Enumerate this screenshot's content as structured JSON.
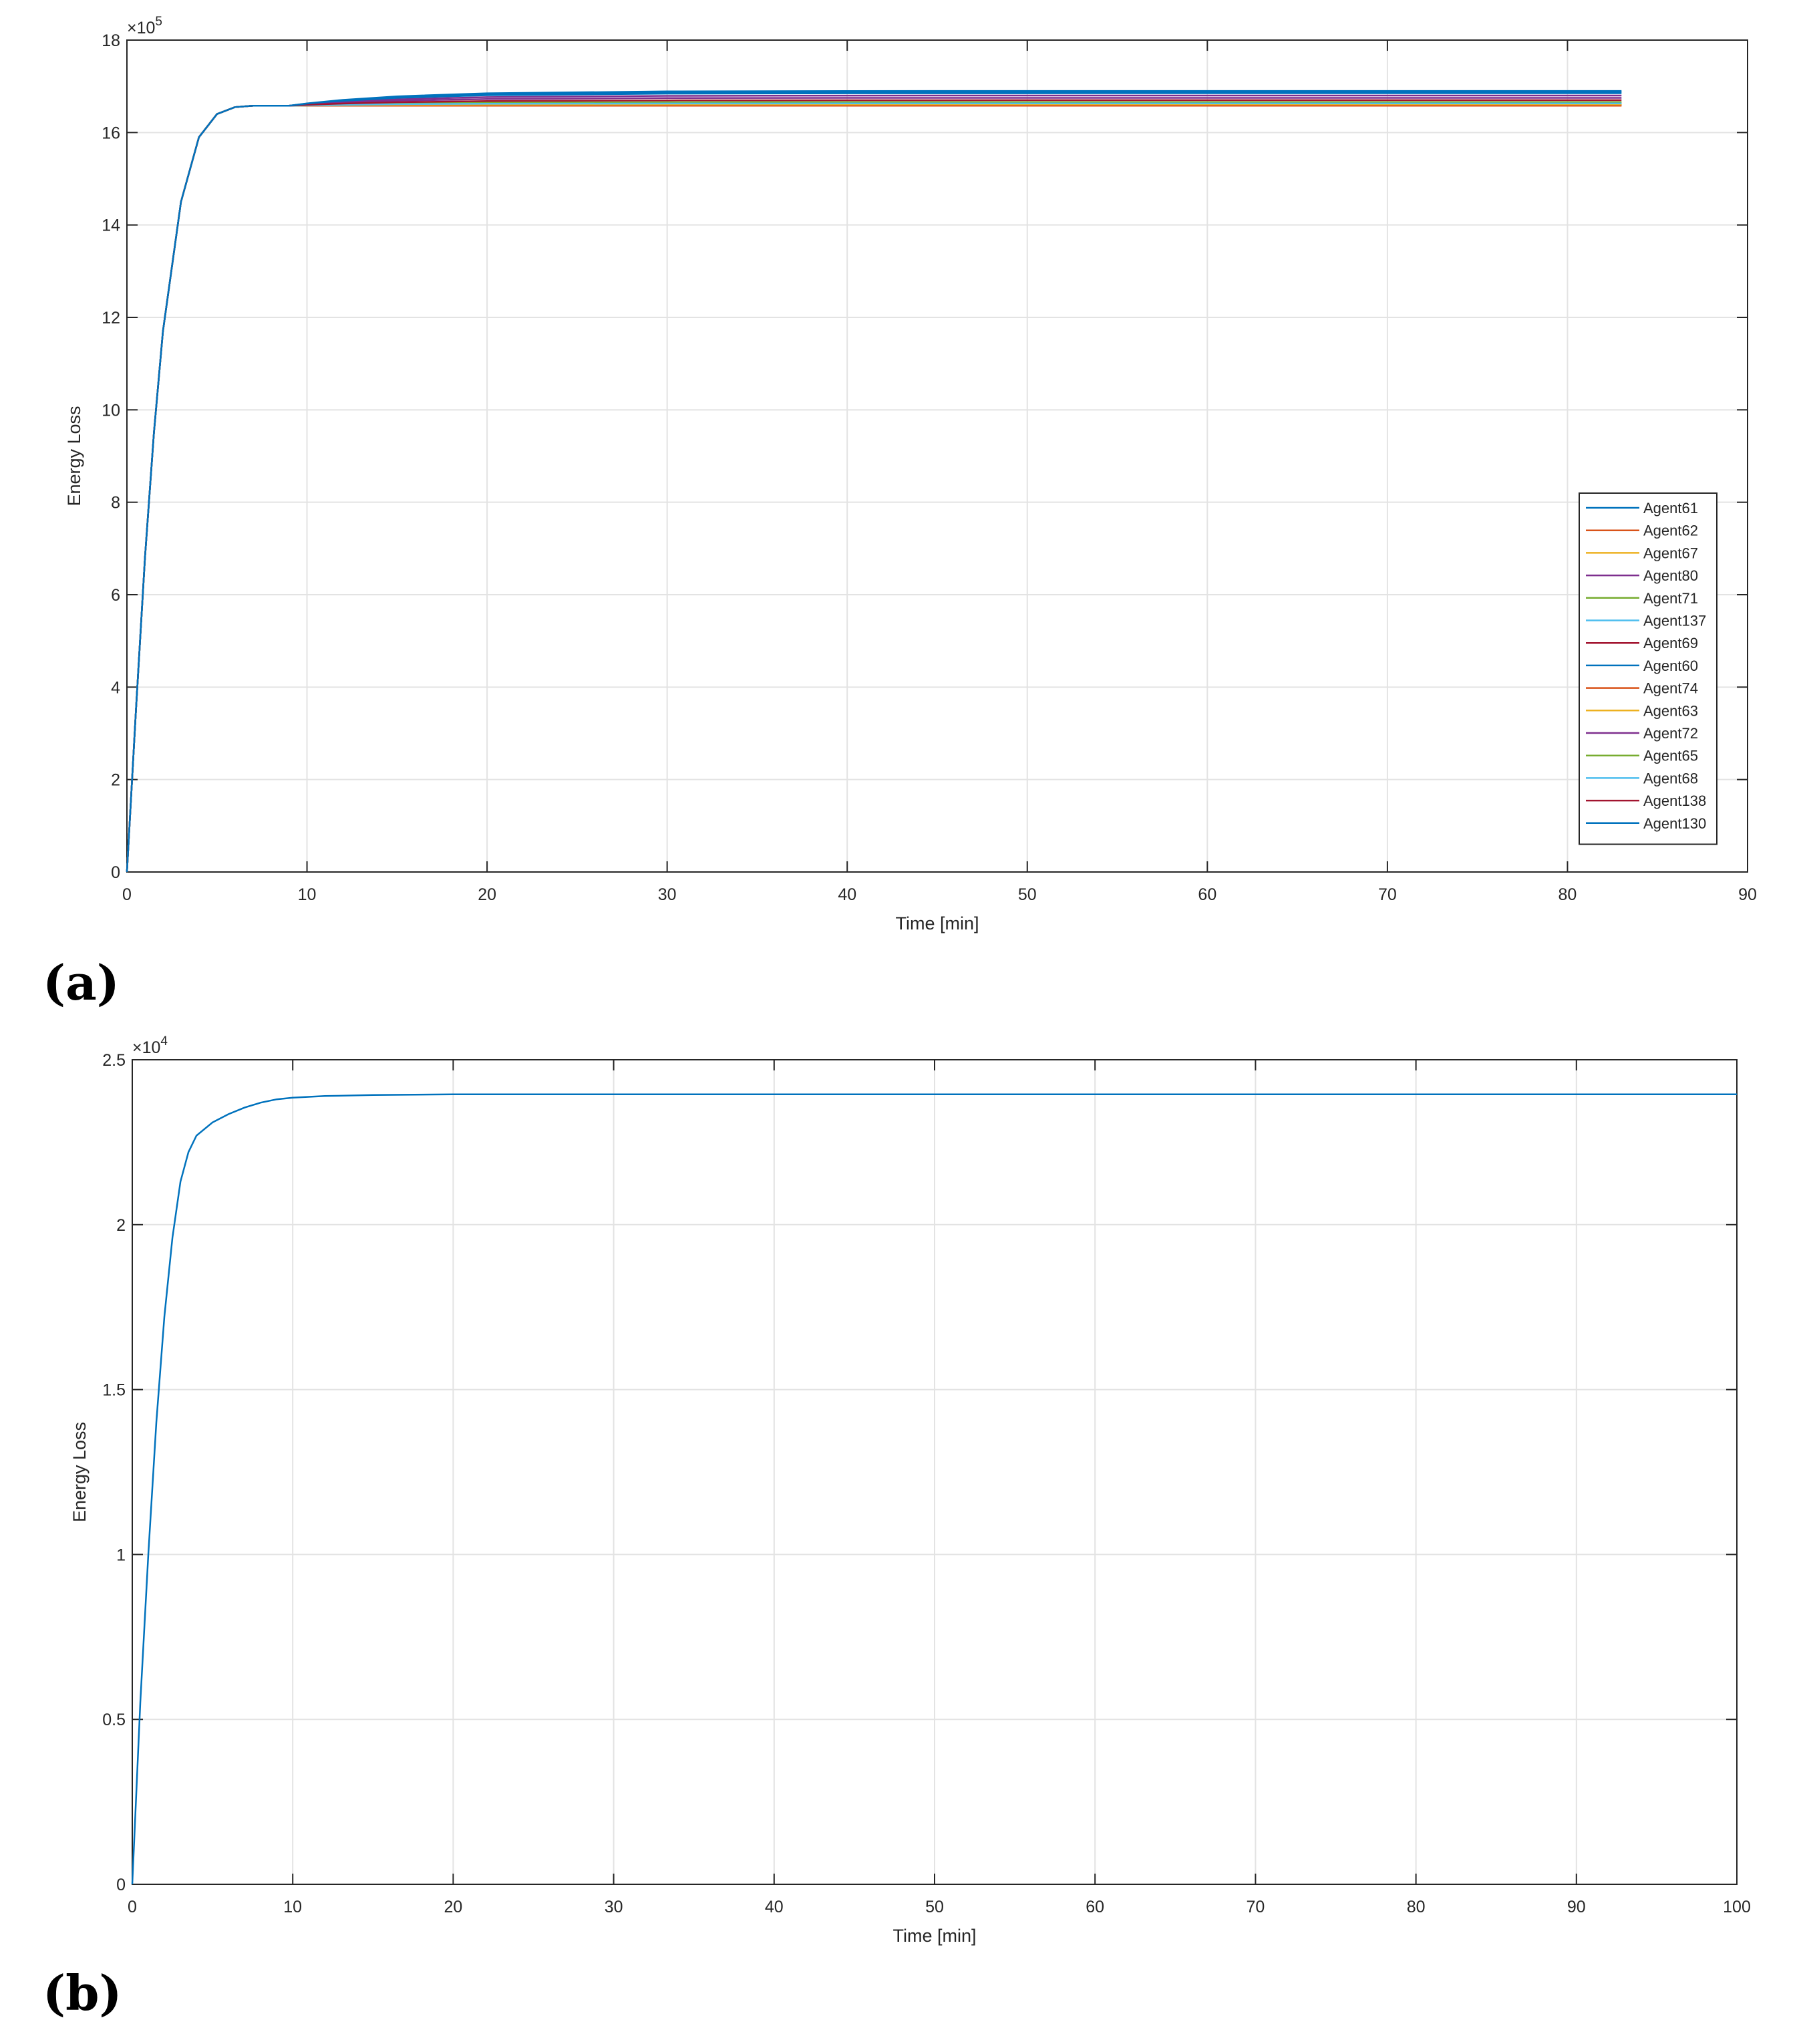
{
  "chart_data": [
    {
      "type": "line",
      "panel_label": "(a)",
      "xlabel": "Time [min]",
      "ylabel": "Energy Loss",
      "y_exponent": "×10^5",
      "y_exponent_base": "×10",
      "y_exponent_power": "5",
      "xlim": [
        0,
        90
      ],
      "ylim": [
        0,
        18
      ],
      "xticks": [
        0,
        10,
        20,
        30,
        40,
        50,
        60,
        70,
        80,
        90
      ],
      "yticks": [
        0,
        2,
        4,
        6,
        8,
        10,
        12,
        14,
        16,
        18
      ],
      "grid": true,
      "legend_position": "right",
      "x": [
        0,
        0.5,
        1,
        1.5,
        2,
        3,
        4,
        5,
        6,
        7,
        8,
        9,
        10,
        12,
        15,
        20,
        30,
        40,
        50,
        60,
        70,
        83
      ],
      "rise": [
        0,
        3.5,
        6.8,
        9.5,
        11.7,
        14.5,
        15.9,
        16.4,
        16.55,
        16.58,
        16.58,
        16.58
      ],
      "series": [
        {
          "name": "Agent61",
          "color": "#0072BD",
          "final": 16.9
        },
        {
          "name": "Agent62",
          "color": "#D95319",
          "final": 16.58
        },
        {
          "name": "Agent67",
          "color": "#EDB120",
          "final": 16.6
        },
        {
          "name": "Agent80",
          "color": "#7E2F8E",
          "final": 16.8
        },
        {
          "name": "Agent71",
          "color": "#77AC30",
          "final": 16.65
        },
        {
          "name": "Agent137",
          "color": "#4DBEEE",
          "final": 16.62
        },
        {
          "name": "Agent69",
          "color": "#A2142F",
          "final": 16.6
        },
        {
          "name": "Agent60",
          "color": "#0072BD",
          "final": 16.85
        },
        {
          "name": "Agent74",
          "color": "#D95319",
          "final": 16.59
        },
        {
          "name": "Agent63",
          "color": "#EDB120",
          "final": 16.61
        },
        {
          "name": "Agent72",
          "color": "#7E2F8E",
          "final": 16.75
        },
        {
          "name": "Agent65",
          "color": "#77AC30",
          "final": 16.66
        },
        {
          "name": "Agent68",
          "color": "#4DBEEE",
          "final": 16.63
        },
        {
          "name": "Agent138",
          "color": "#A2142F",
          "final": 16.7
        },
        {
          "name": "Agent130",
          "color": "#0072BD",
          "final": 16.88
        }
      ]
    },
    {
      "type": "line",
      "panel_label": "(b)",
      "xlabel": "Time [min]",
      "ylabel": "Energy Loss",
      "y_exponent": "×10^4",
      "y_exponent_base": "×10",
      "y_exponent_power": "4",
      "xlim": [
        0,
        100
      ],
      "ylim": [
        0,
        2.5
      ],
      "xticks": [
        0,
        10,
        20,
        30,
        40,
        50,
        60,
        70,
        80,
        90,
        100
      ],
      "yticks": [
        0,
        0.5,
        1,
        1.5,
        2,
        2.5
      ],
      "ytick_labels": [
        "0",
        "0.5",
        "1",
        "1.5",
        "2",
        "2.5"
      ],
      "grid": true,
      "series": [
        {
          "color": "#0072BD",
          "x": [
            0,
            0.5,
            1,
            1.5,
            2,
            2.5,
            3,
            3.5,
            4,
            5,
            6,
            7,
            8,
            9,
            10,
            12,
            15,
            20,
            30,
            50,
            100
          ],
          "values": [
            0,
            0.55,
            1.0,
            1.4,
            1.72,
            1.96,
            2.13,
            2.22,
            2.27,
            2.31,
            2.335,
            2.355,
            2.37,
            2.38,
            2.385,
            2.39,
            2.393,
            2.395,
            2.395,
            2.395,
            2.395
          ]
        }
      ]
    }
  ]
}
